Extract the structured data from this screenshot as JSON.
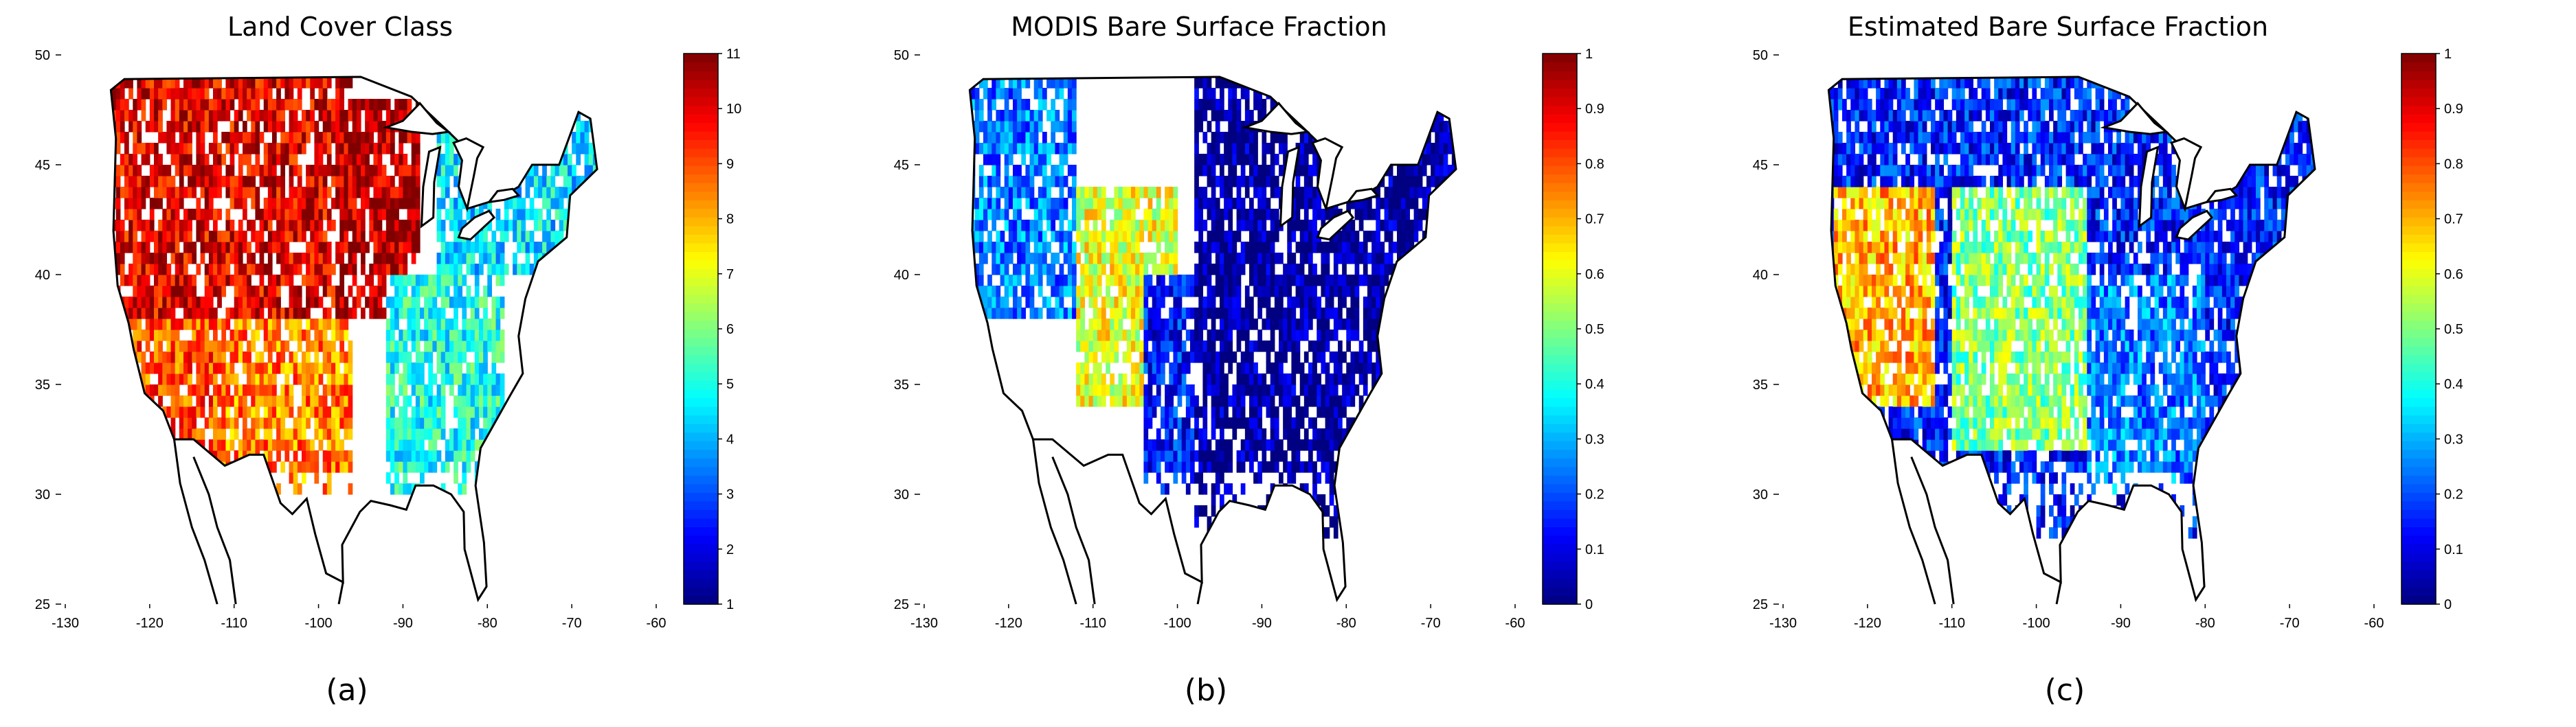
{
  "chart_data": [
    {
      "type": "heatmap",
      "title": "Land Cover Class",
      "panel_label": "(a)",
      "xlim": [
        -130,
        -60
      ],
      "ylim": [
        25,
        50
      ],
      "xticks": [
        "-130",
        "-120",
        "-110",
        "-100",
        "-90",
        "-80",
        "-70",
        "-60"
      ],
      "yticks": [
        "25",
        "30",
        "35",
        "40",
        "45",
        "50"
      ],
      "colorbar": {
        "min": 1,
        "max": 11,
        "ticks": [
          "1",
          "2",
          "3",
          "4",
          "5",
          "6",
          "7",
          "8",
          "9",
          "10",
          "11"
        ],
        "colormap": "jet"
      },
      "regions": [
        {
          "lon": [
            -128,
            -96
          ],
          "lat": [
            38,
            50
          ],
          "value": 10
        },
        {
          "lon": [
            -98,
            -88
          ],
          "lat": [
            38,
            48
          ],
          "value": 10.5
        },
        {
          "lon": [
            -124,
            -112
          ],
          "lat": [
            30,
            38
          ],
          "value": 9
        },
        {
          "lon": [
            -112,
            -96
          ],
          "lat": [
            30,
            38
          ],
          "value": 8.5
        },
        {
          "lon": [
            -86,
            -66
          ],
          "lat": [
            40,
            50
          ],
          "value": 4.5
        },
        {
          "lon": [
            -92,
            -78
          ],
          "lat": [
            30,
            40
          ],
          "value": 5
        }
      ]
    },
    {
      "type": "heatmap",
      "title": "MODIS Bare Surface Fraction",
      "panel_label": "(b)",
      "xlim": [
        -130,
        -60
      ],
      "ylim": [
        25,
        50
      ],
      "xticks": [
        "-130",
        "-120",
        "-110",
        "-100",
        "-90",
        "-80",
        "-70",
        "-60"
      ],
      "yticks": [
        "25",
        "30",
        "35",
        "40",
        "45",
        "50"
      ],
      "colorbar": {
        "min": 0,
        "max": 1,
        "ticks": [
          "0",
          "0.1",
          "0.2",
          "0.3",
          "0.4",
          "0.5",
          "0.6",
          "0.7",
          "0.8",
          "0.9",
          "1"
        ],
        "colormap": "jet"
      },
      "regions": [
        {
          "lon": [
            -98,
            -66
          ],
          "lat": [
            28,
            50
          ],
          "value": 0.02
        },
        {
          "lon": [
            -126,
            -112
          ],
          "lat": [
            38,
            50
          ],
          "value": 0.25
        },
        {
          "lon": [
            -112,
            -100
          ],
          "lat": [
            34,
            44
          ],
          "value": 0.6
        },
        {
          "lon": [
            -104,
            -98
          ],
          "lat": [
            30,
            40
          ],
          "value": 0.15
        }
      ]
    },
    {
      "type": "heatmap",
      "title": "Estimated Bare Surface Fraction",
      "panel_label": "(c)",
      "xlim": [
        -130,
        -60
      ],
      "ylim": [
        25,
        50
      ],
      "xticks": [
        "-130",
        "-120",
        "-110",
        "-100",
        "-90",
        "-80",
        "-70",
        "-60"
      ],
      "yticks": [
        "25",
        "30",
        "35",
        "40",
        "45",
        "50"
      ],
      "colorbar": {
        "min": 0,
        "max": 1,
        "ticks": [
          "0",
          "0.1",
          "0.2",
          "0.3",
          "0.4",
          "0.5",
          "0.6",
          "0.7",
          "0.8",
          "0.9",
          "1"
        ],
        "colormap": "jet"
      },
      "regions": [
        {
          "lon": [
            -126,
            -66
          ],
          "lat": [
            28,
            50
          ],
          "value": 0.15
        },
        {
          "lon": [
            -124,
            -112
          ],
          "lat": [
            34,
            44
          ],
          "value": 0.7
        },
        {
          "lon": [
            -110,
            -94
          ],
          "lat": [
            32,
            44
          ],
          "value": 0.5
        },
        {
          "lon": [
            -94,
            -80
          ],
          "lat": [
            30,
            40
          ],
          "value": 0.25
        }
      ]
    }
  ]
}
